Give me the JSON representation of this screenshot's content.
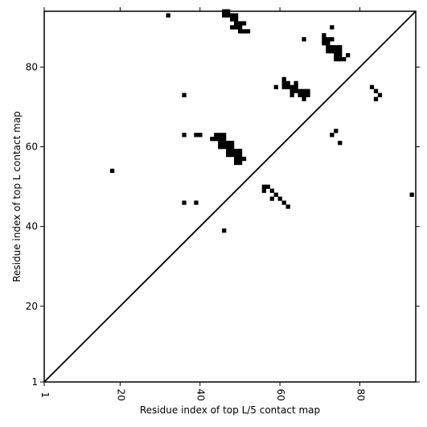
{
  "chart_data": {
    "type": "heatmap",
    "xlabel": "Residue index of top L/5 contact map",
    "ylabel": "Residue index of top L contact map",
    "xlim": [
      1,
      94
    ],
    "ylim": [
      1,
      94
    ],
    "x_ticks": [
      1,
      20,
      40,
      60,
      80
    ],
    "y_ticks": [
      1,
      20,
      40,
      60,
      80
    ],
    "diagonal": true,
    "cell_color": "#000000",
    "background_color": "#ffffff",
    "contacts": [
      [
        32,
        93
      ],
      [
        46,
        94
      ],
      [
        47,
        94
      ],
      [
        46,
        93
      ],
      [
        47,
        93
      ],
      [
        48,
        93
      ],
      [
        49,
        93
      ],
      [
        48,
        92
      ],
      [
        49,
        92
      ],
      [
        49,
        91
      ],
      [
        50,
        91
      ],
      [
        51,
        91
      ],
      [
        48,
        90
      ],
      [
        49,
        90
      ],
      [
        50,
        90
      ],
      [
        50,
        89
      ],
      [
        51,
        89
      ],
      [
        52,
        89
      ],
      [
        73,
        90
      ],
      [
        71,
        88
      ],
      [
        71,
        87
      ],
      [
        72,
        87
      ],
      [
        73,
        87
      ],
      [
        66,
        87
      ],
      [
        71,
        86
      ],
      [
        72,
        86
      ],
      [
        72,
        85
      ],
      [
        73,
        85
      ],
      [
        74,
        85
      ],
      [
        75,
        85
      ],
      [
        72,
        84
      ],
      [
        73,
        84
      ],
      [
        74,
        84
      ],
      [
        75,
        84
      ],
      [
        74,
        83
      ],
      [
        75,
        83
      ],
      [
        77,
        83
      ],
      [
        74,
        82
      ],
      [
        75,
        82
      ],
      [
        76,
        82
      ],
      [
        61,
        77
      ],
      [
        61,
        76
      ],
      [
        62,
        76
      ],
      [
        64,
        76
      ],
      [
        59,
        75
      ],
      [
        61,
        75
      ],
      [
        62,
        75
      ],
      [
        63,
        75
      ],
      [
        64,
        75
      ],
      [
        63,
        74
      ],
      [
        64,
        74
      ],
      [
        65,
        74
      ],
      [
        66,
        74
      ],
      [
        67,
        74
      ],
      [
        63,
        73
      ],
      [
        65,
        73
      ],
      [
        66,
        73
      ],
      [
        67,
        73
      ],
      [
        66,
        72
      ],
      [
        36,
        73
      ],
      [
        83,
        75
      ],
      [
        84,
        74
      ],
      [
        85,
        73
      ],
      [
        84,
        72
      ],
      [
        74,
        64
      ],
      [
        73,
        63
      ],
      [
        75,
        61
      ],
      [
        36,
        63
      ],
      [
        39,
        63
      ],
      [
        40,
        63
      ],
      [
        44,
        63
      ],
      [
        45,
        63
      ],
      [
        46,
        63
      ],
      [
        43,
        62
      ],
      [
        44,
        62
      ],
      [
        45,
        62
      ],
      [
        46,
        62
      ],
      [
        45,
        61
      ],
      [
        46,
        61
      ],
      [
        47,
        61
      ],
      [
        48,
        61
      ],
      [
        45,
        60
      ],
      [
        46,
        60
      ],
      [
        47,
        60
      ],
      [
        48,
        60
      ],
      [
        47,
        59
      ],
      [
        48,
        59
      ],
      [
        49,
        59
      ],
      [
        50,
        59
      ],
      [
        47,
        58
      ],
      [
        48,
        58
      ],
      [
        49,
        58
      ],
      [
        50,
        58
      ],
      [
        49,
        57
      ],
      [
        50,
        57
      ],
      [
        51,
        57
      ],
      [
        49,
        56
      ],
      [
        50,
        56
      ],
      [
        18,
        54
      ],
      [
        56,
        50
      ],
      [
        57,
        50
      ],
      [
        56,
        49
      ],
      [
        58,
        49
      ],
      [
        59,
        48
      ],
      [
        58,
        47
      ],
      [
        60,
        47
      ],
      [
        61,
        46
      ],
      [
        62,
        45
      ],
      [
        93,
        48
      ],
      [
        36,
        46
      ],
      [
        39,
        46
      ],
      [
        46,
        39
      ]
    ]
  }
}
